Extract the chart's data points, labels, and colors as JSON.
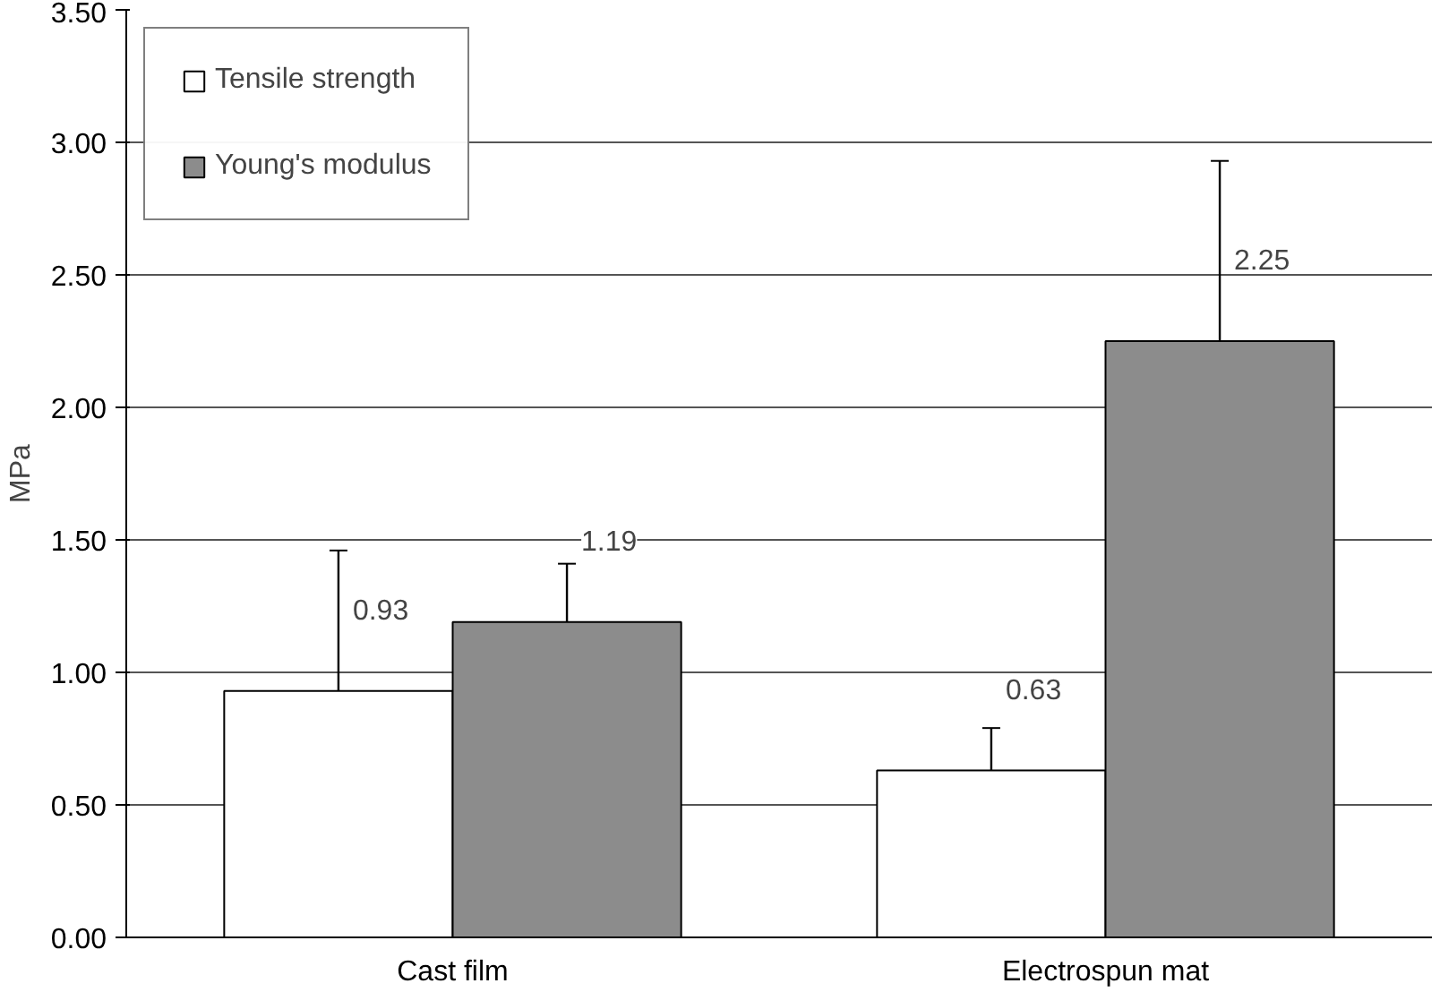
{
  "chart_data": {
    "type": "bar",
    "ylabel": "MPa",
    "categories": [
      "Cast film",
      "Electrospun mat"
    ],
    "series": [
      {
        "name": "Tensile strength",
        "color": "#ffffff",
        "values": [
          0.93,
          0.63
        ],
        "errors": [
          0.53,
          0.16
        ]
      },
      {
        "name": "Young's modulus",
        "color": "#8c8c8c",
        "values": [
          1.19,
          2.25
        ],
        "errors": [
          0.22,
          0.68
        ]
      }
    ],
    "ylim": [
      0,
      3.5
    ],
    "yticks": [
      {
        "value": 0,
        "label": "0.00"
      },
      {
        "value": 0.5,
        "label": "0.50"
      },
      {
        "value": 1,
        "label": "1.00"
      },
      {
        "value": 1.5,
        "label": "1.50"
      },
      {
        "value": 2,
        "label": "2.00"
      },
      {
        "value": 2.5,
        "label": "2.50"
      },
      {
        "value": 3,
        "label": "3.00"
      },
      {
        "value": 3.5,
        "label": "3.50"
      }
    ],
    "grid": "y",
    "legend": "top left",
    "data_labels": true
  }
}
